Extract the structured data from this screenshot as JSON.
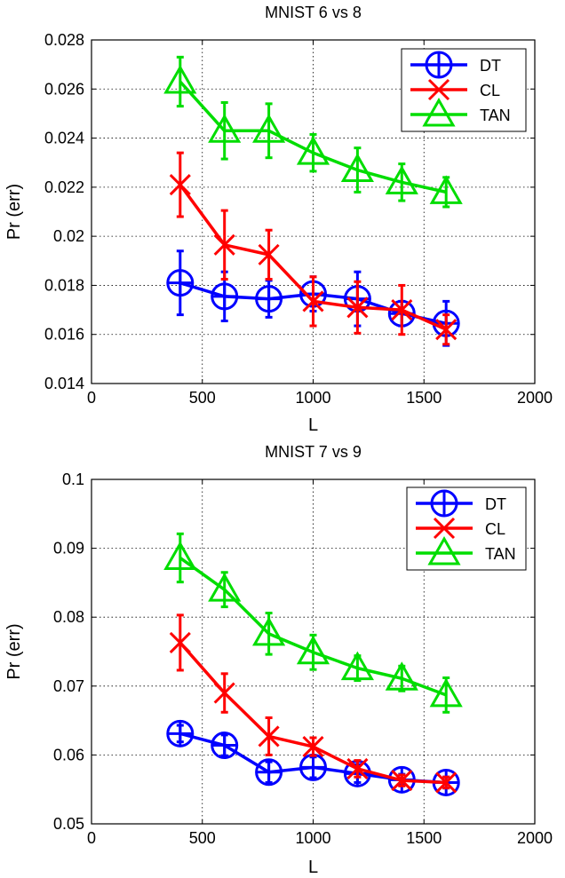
{
  "chart_data": [
    {
      "type": "line",
      "title": "MNIST 6 vs 8",
      "xlabel": "L",
      "ylabel": "Pr (err)",
      "xlim": [
        0,
        2000
      ],
      "ylim": [
        0.014,
        0.028
      ],
      "xticks": [
        0,
        500,
        1000,
        1500,
        2000
      ],
      "xtick_labels": [
        "0",
        "500",
        "1000",
        "1500",
        "2000"
      ],
      "yticks": [
        0.014,
        0.016,
        0.018,
        0.02,
        0.022,
        0.024,
        0.026,
        0.028
      ],
      "ytick_labels": [
        "0.014",
        "0.016",
        "0.018",
        "0.02",
        "0.022",
        "0.024",
        "0.026",
        "0.028"
      ],
      "grid": true,
      "legend_position": "top-right",
      "x": [
        400,
        600,
        800,
        1000,
        1200,
        1400,
        1600
      ],
      "series": [
        {
          "name": "DT",
          "color": "#0000ff",
          "marker": "circle-plus",
          "values": [
            0.0181,
            0.01755,
            0.01745,
            0.01765,
            0.01745,
            0.01685,
            0.01645
          ],
          "errors": [
            0.0013,
            0.001,
            0.00075,
            0.0007,
            0.0011,
            0.0005,
            0.0009
          ]
        },
        {
          "name": "CL",
          "color": "#ff0000",
          "marker": "x",
          "values": [
            0.0221,
            0.01965,
            0.01925,
            0.01735,
            0.0171,
            0.017,
            0.0162
          ],
          "errors": [
            0.0013,
            0.0014,
            0.001,
            0.001,
            0.00105,
            0.001,
            0.0006
          ]
        },
        {
          "name": "TAN",
          "color": "#00dd00",
          "marker": "triangle",
          "values": [
            0.0263,
            0.0243,
            0.0243,
            0.0234,
            0.0227,
            0.0222,
            0.0218
          ],
          "errors": [
            0.001,
            0.00115,
            0.0011,
            0.00075,
            0.0009,
            0.00075,
            0.0006
          ]
        }
      ]
    },
    {
      "type": "line",
      "title": "MNIST 7 vs 9",
      "xlabel": "L",
      "ylabel": "Pr (err)",
      "xlim": [
        0,
        2000
      ],
      "ylim": [
        0.05,
        0.1
      ],
      "xticks": [
        0,
        500,
        1000,
        1500,
        2000
      ],
      "xtick_labels": [
        "0",
        "500",
        "1000",
        "1500",
        "2000"
      ],
      "yticks": [
        0.05,
        0.06,
        0.07,
        0.08,
        0.09,
        0.1
      ],
      "ytick_labels": [
        "0.05",
        "0.06",
        "0.07",
        "0.08",
        "0.09",
        "0.1"
      ],
      "grid": true,
      "legend_position": "top-right",
      "x": [
        400,
        600,
        800,
        1000,
        1200,
        1400,
        1600
      ],
      "series": [
        {
          "name": "DT",
          "color": "#0000ff",
          "marker": "circle-plus",
          "values": [
            0.0631,
            0.0614,
            0.0575,
            0.0582,
            0.0573,
            0.0564,
            0.056
          ],
          "errors": [
            0.0012,
            0.0015,
            0.0015,
            0.0015,
            0.0013,
            0.0008,
            0.0008
          ]
        },
        {
          "name": "CL",
          "color": "#ff0000",
          "marker": "x",
          "values": [
            0.0763,
            0.069,
            0.0627,
            0.0612,
            0.058,
            0.0563,
            0.056
          ],
          "errors": [
            0.004,
            0.0028,
            0.0027,
            0.0013,
            0.0012,
            0.0008,
            0.0008
          ]
        },
        {
          "name": "TAN",
          "color": "#00dd00",
          "marker": "triangle",
          "values": [
            0.0886,
            0.084,
            0.0776,
            0.0749,
            0.0726,
            0.0711,
            0.0687
          ],
          "errors": [
            0.0035,
            0.0025,
            0.003,
            0.0025,
            0.0018,
            0.0018,
            0.0025
          ]
        }
      ]
    }
  ]
}
